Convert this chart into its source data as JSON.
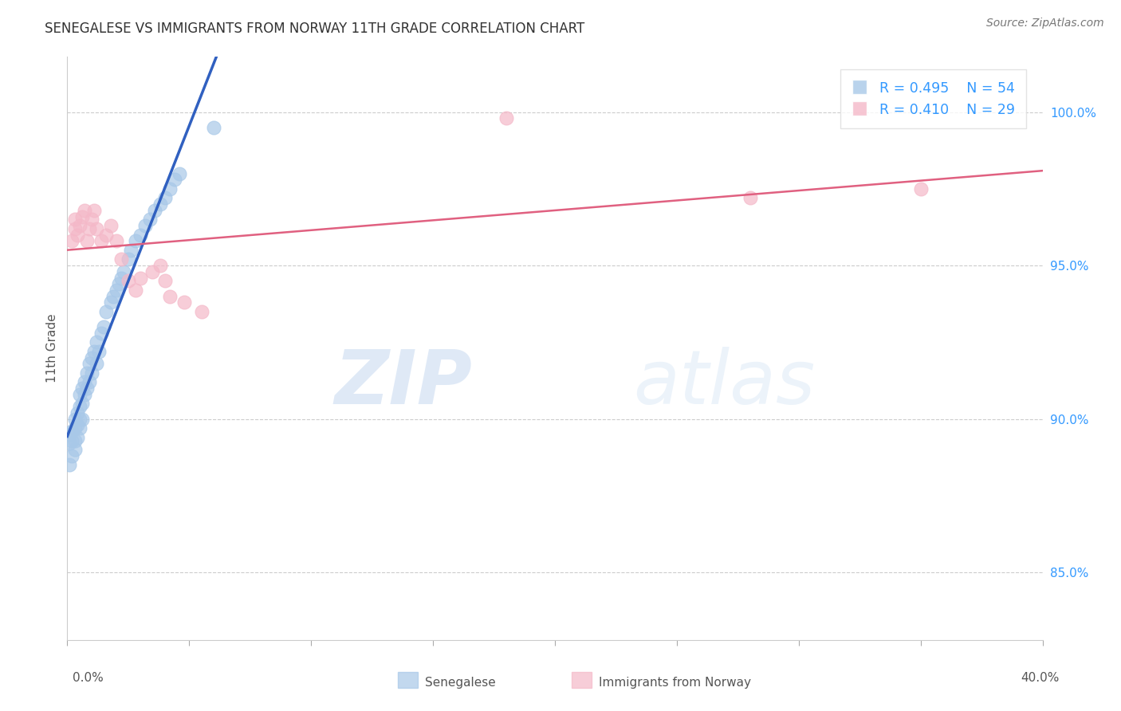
{
  "title": "SENEGALESE VS IMMIGRANTS FROM NORWAY 11TH GRADE CORRELATION CHART",
  "source": "Source: ZipAtlas.com",
  "ylabel": "11th Grade",
  "ylabel_right_labels": [
    "85.0%",
    "90.0%",
    "95.0%",
    "100.0%"
  ],
  "ylabel_right_values": [
    0.85,
    0.9,
    0.95,
    1.0
  ],
  "x_min": 0.0,
  "x_max": 0.4,
  "y_min": 0.828,
  "y_max": 1.018,
  "legend_blue_r": "0.495",
  "legend_blue_n": "54",
  "legend_pink_r": "0.410",
  "legend_pink_n": "29",
  "legend_label_blue": "Senegalese",
  "legend_label_pink": "Immigrants from Norway",
  "blue_scatter_x": [
    0.001,
    0.001,
    0.001,
    0.002,
    0.002,
    0.002,
    0.003,
    0.003,
    0.003,
    0.003,
    0.004,
    0.004,
    0.004,
    0.005,
    0.005,
    0.005,
    0.005,
    0.006,
    0.006,
    0.006,
    0.007,
    0.007,
    0.008,
    0.008,
    0.009,
    0.009,
    0.01,
    0.01,
    0.011,
    0.012,
    0.012,
    0.013,
    0.014,
    0.015,
    0.016,
    0.018,
    0.019,
    0.02,
    0.021,
    0.022,
    0.023,
    0.025,
    0.026,
    0.028,
    0.03,
    0.032,
    0.034,
    0.036,
    0.038,
    0.04,
    0.042,
    0.044,
    0.046,
    0.06
  ],
  "blue_scatter_y": [
    0.885,
    0.892,
    0.895,
    0.888,
    0.893,
    0.896,
    0.89,
    0.893,
    0.897,
    0.9,
    0.894,
    0.898,
    0.902,
    0.897,
    0.9,
    0.904,
    0.908,
    0.9,
    0.905,
    0.91,
    0.908,
    0.912,
    0.91,
    0.915,
    0.912,
    0.918,
    0.915,
    0.92,
    0.922,
    0.918,
    0.925,
    0.922,
    0.928,
    0.93,
    0.935,
    0.938,
    0.94,
    0.942,
    0.944,
    0.946,
    0.948,
    0.952,
    0.955,
    0.958,
    0.96,
    0.963,
    0.965,
    0.968,
    0.97,
    0.972,
    0.975,
    0.978,
    0.98,
    0.995
  ],
  "pink_scatter_x": [
    0.002,
    0.003,
    0.003,
    0.004,
    0.005,
    0.006,
    0.007,
    0.008,
    0.009,
    0.01,
    0.011,
    0.012,
    0.014,
    0.016,
    0.018,
    0.02,
    0.022,
    0.025,
    0.028,
    0.03,
    0.035,
    0.038,
    0.04,
    0.042,
    0.048,
    0.055,
    0.18,
    0.28,
    0.35
  ],
  "pink_scatter_y": [
    0.958,
    0.962,
    0.965,
    0.96,
    0.963,
    0.966,
    0.968,
    0.958,
    0.962,
    0.965,
    0.968,
    0.962,
    0.958,
    0.96,
    0.963,
    0.958,
    0.952,
    0.945,
    0.942,
    0.946,
    0.948,
    0.95,
    0.945,
    0.94,
    0.938,
    0.935,
    0.998,
    0.972,
    0.975
  ],
  "blue_color": "#a8c8e8",
  "pink_color": "#f4b8c8",
  "blue_line_color": "#3060c0",
  "pink_line_color": "#e06080",
  "watermark_zip": "ZIP",
  "watermark_atlas": "atlas",
  "background_color": "#ffffff",
  "grid_color": "#cccccc"
}
